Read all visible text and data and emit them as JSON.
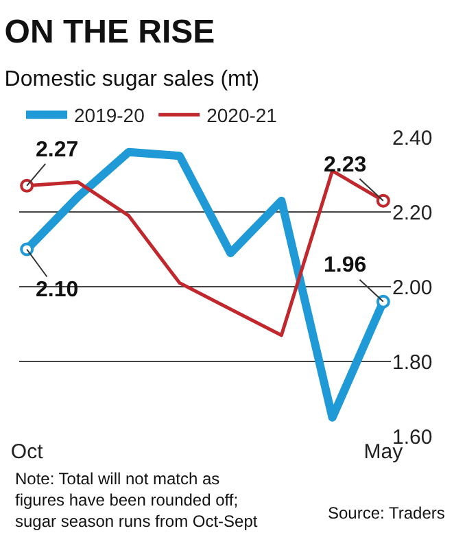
{
  "chart_data": {
    "type": "line",
    "title": "ON THE RISE",
    "subtitle": "Domestic sugar sales (mt)",
    "categories": [
      "Oct",
      null,
      null,
      null,
      null,
      null,
      null,
      "May"
    ],
    "series": [
      {
        "name": "2019-20",
        "color": "#1f9ad6",
        "values": [
          2.1,
          2.24,
          2.36,
          2.35,
          2.09,
          2.23,
          1.65,
          1.96
        ],
        "value_labels": [
          "2.10",
          null,
          null,
          null,
          null,
          null,
          null,
          "1.96"
        ]
      },
      {
        "name": "2020-21",
        "color": "#c0282d",
        "values": [
          2.27,
          2.28,
          2.19,
          2.01,
          1.94,
          1.87,
          2.31,
          2.23
        ],
        "value_labels": [
          "2.27",
          null,
          null,
          null,
          null,
          null,
          null,
          "2.23"
        ]
      }
    ],
    "ylim": [
      1.6,
      2.4
    ],
    "yticks": [
      {
        "value": 1.6,
        "label": "1.60"
      },
      {
        "value": 1.8,
        "label": "1.80"
      },
      {
        "value": 2.0,
        "label": "2.00"
      },
      {
        "value": 2.2,
        "label": "2.20"
      },
      {
        "value": 2.4,
        "label": "2.40"
      }
    ],
    "grid": "y",
    "legend": "top left",
    "annotations": [
      "Note: Total will not match as figures have been rounded off;  sugar season runs from Oct-Sept",
      "Source: Traders"
    ]
  }
}
